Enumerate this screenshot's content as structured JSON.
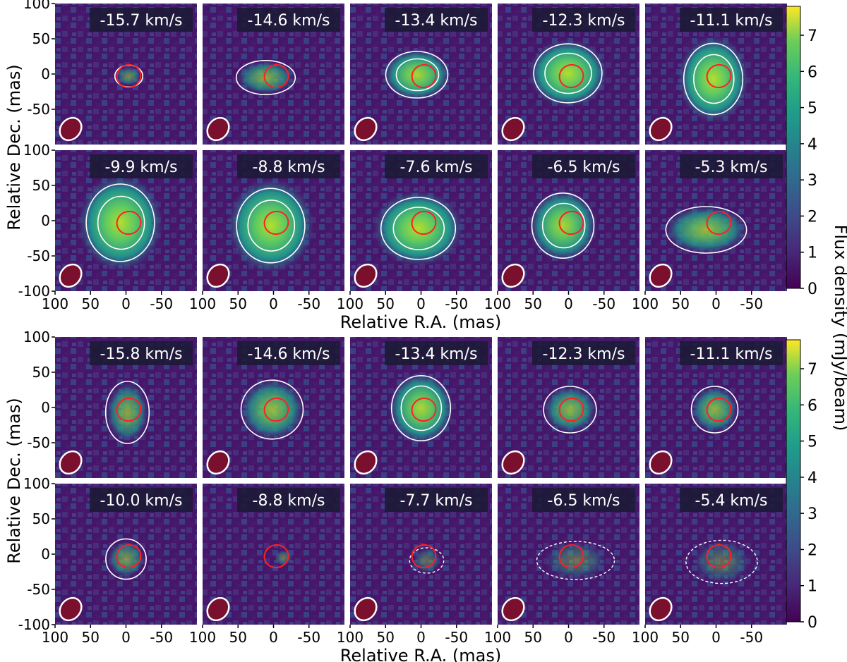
{
  "figure": {
    "ylabel": "Relative Dec. (mas)",
    "xlabel": "Relative R.A. (mas)",
    "colorbar_label": "Flux density (mJy/beam)",
    "x_ticks": [
      "100",
      "50",
      "0",
      "-50"
    ],
    "x_ticks_last": [
      "100",
      "50",
      "0",
      "-50",
      "100"
    ],
    "y_ticks": [
      "100",
      "50",
      "0",
      "-50",
      "-100"
    ],
    "colorbar_ticks": [
      "0",
      "1",
      "2",
      "3",
      "4",
      "5",
      "6",
      "7"
    ],
    "colormap": "viridis",
    "contour_color": "#ffffff",
    "star_ellipse_color": "#ff2020",
    "beam_fill": "#7a0f2e",
    "label_box_color": "#1a1a33",
    "colorbar_range": [
      0,
      7.8
    ]
  },
  "blocks": [
    {
      "rows": [
        {
          "panels": [
            {
              "velocity": "-15.7 km/s",
              "intensity": 0.3
            },
            {
              "velocity": "-14.6 km/s",
              "intensity": 0.45
            },
            {
              "velocity": "-13.4 km/s",
              "intensity": 0.7
            },
            {
              "velocity": "-12.3 km/s",
              "intensity": 0.8
            },
            {
              "velocity": "-11.1 km/s",
              "intensity": 0.9
            }
          ]
        },
        {
          "panels": [
            {
              "velocity": "-9.9 km/s",
              "intensity": 0.95
            },
            {
              "velocity": "-8.8 km/s",
              "intensity": 1.0
            },
            {
              "velocity": "-7.6 km/s",
              "intensity": 0.9
            },
            {
              "velocity": "-6.5 km/s",
              "intensity": 0.7
            },
            {
              "velocity": "-5.3 km/s",
              "intensity": 0.55
            }
          ]
        }
      ]
    },
    {
      "rows": [
        {
          "panels": [
            {
              "velocity": "-15.8 km/s",
              "intensity": 0.45
            },
            {
              "velocity": "-14.6 km/s",
              "intensity": 0.55
            },
            {
              "velocity": "-13.4 km/s",
              "intensity": 0.7
            },
            {
              "velocity": "-12.3 km/s",
              "intensity": 0.5
            },
            {
              "velocity": "-11.1 km/s",
              "intensity": 0.5
            }
          ]
        },
        {
          "panels": [
            {
              "velocity": "-10.0 km/s",
              "intensity": 0.35
            },
            {
              "velocity": "-8.8 km/s",
              "intensity": 0.2
            },
            {
              "velocity": "-7.7 km/s",
              "intensity": 0.15
            },
            {
              "velocity": "-6.5 km/s",
              "intensity": 0.15
            },
            {
              "velocity": "-5.4 km/s",
              "intensity": 0.15
            }
          ]
        }
      ]
    }
  ]
}
